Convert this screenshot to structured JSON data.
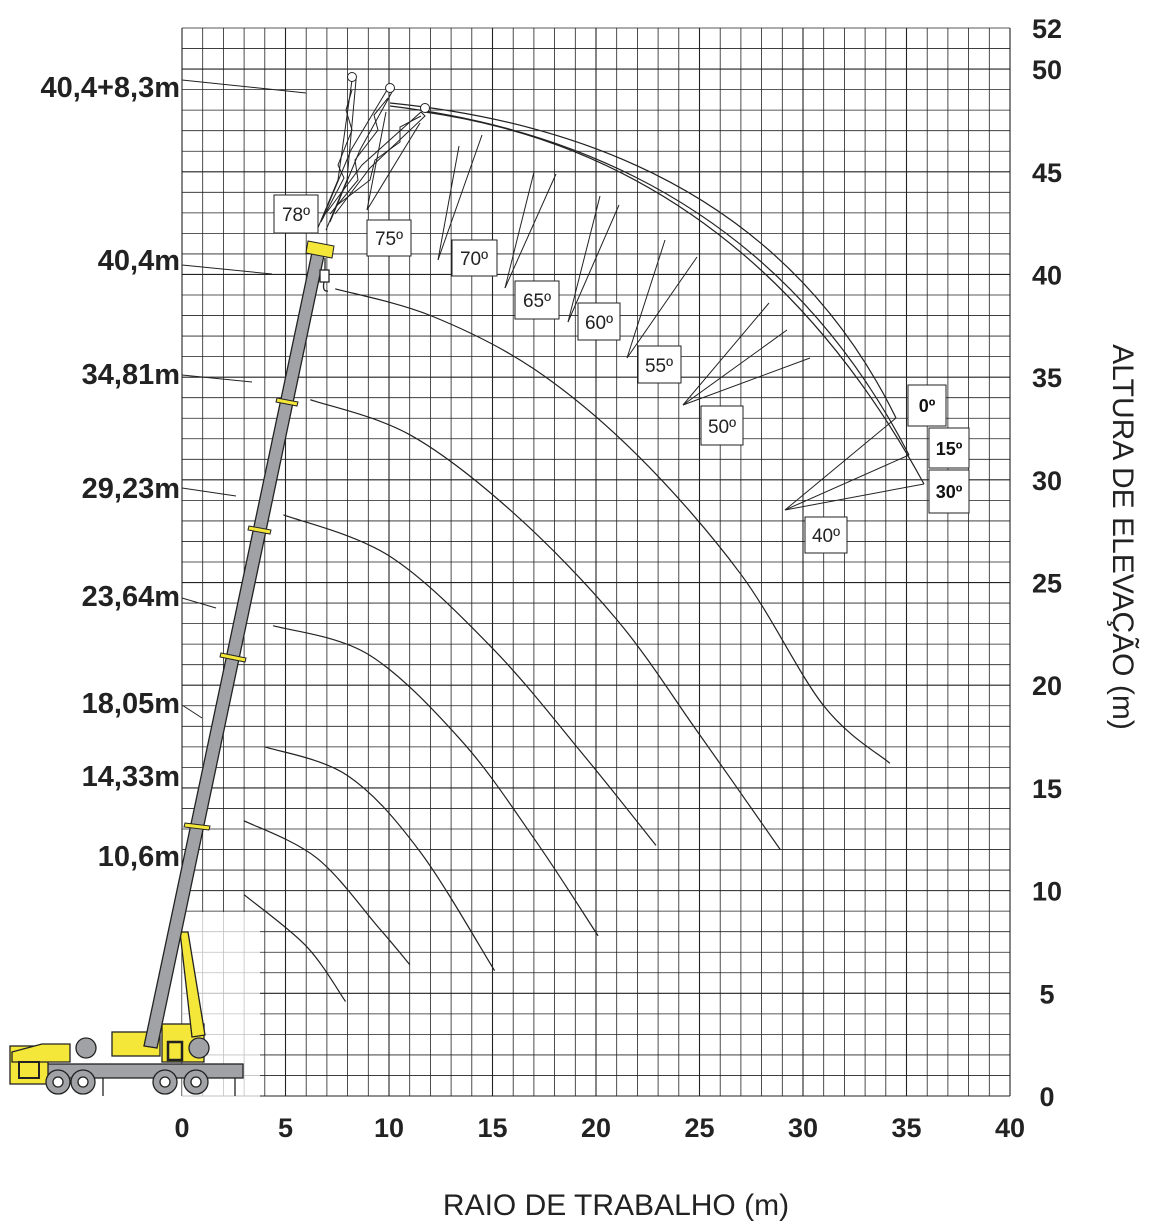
{
  "chart_data": {
    "type": "line",
    "xlabel": "RAIO DE TRABALHO (m)",
    "ylabel": "ALTURA DE ELEVAÇÃO (m)",
    "xlim": [
      0,
      40
    ],
    "ylim": [
      0,
      52
    ],
    "x_ticks": [
      "0",
      "5",
      "10",
      "15",
      "20",
      "25",
      "30",
      "35",
      "40"
    ],
    "y_ticks": [
      "0",
      "5",
      "10",
      "15",
      "20",
      "25",
      "30",
      "35",
      "40",
      "45",
      "50",
      "52"
    ],
    "grid": true,
    "boom_lengths": [
      {
        "label": "40,4+8,3m",
        "height": 48.7
      },
      {
        "label": "40,4m",
        "height": 39.7
      },
      {
        "label": "34,81m",
        "height": 34.6
      },
      {
        "label": "29,23m",
        "height": 29.1
      },
      {
        "label": "23,64m",
        "height": 23.7
      },
      {
        "label": "18,05m",
        "height": 18.5
      },
      {
        "label": "14,33m",
        "height": 14.8
      },
      {
        "label": "10,6m",
        "height": 11.2
      }
    ],
    "series": [
      {
        "x": [
          7.4,
          12,
          17,
          22,
          27,
          31,
          34.2
        ],
        "y": [
          39.3,
          38.0,
          35.4,
          31.2,
          25.4,
          19.0,
          16.2
        ]
      },
      {
        "x": [
          6.2,
          11,
          16,
          21,
          25,
          28.9
        ],
        "y": [
          33.9,
          32.2,
          28.4,
          23.2,
          17.6,
          12.0
        ]
      },
      {
        "x": [
          4.9,
          10,
          15,
          19.4,
          22.9
        ],
        "y": [
          28.3,
          26.3,
          21.8,
          16.6,
          12.2
        ]
      },
      {
        "x": [
          4.4,
          9,
          13.5,
          17.1,
          20.1
        ],
        "y": [
          22.9,
          21.5,
          17.3,
          12.4,
          7.8
        ]
      },
      {
        "x": [
          4.0,
          8,
          11.5,
          15.1
        ],
        "y": [
          17.0,
          15.6,
          11.9,
          6.1
        ]
      },
      {
        "x": [
          3.0,
          6.5,
          9.5,
          11.0
        ],
        "y": [
          13.4,
          11.6,
          8.2,
          6.4
        ]
      },
      {
        "x": [
          3.0,
          6,
          7.9
        ],
        "y": [
          9.8,
          7.3,
          4.6
        ]
      }
    ],
    "jib_angles": [
      "78º",
      "75º",
      "70º",
      "65º",
      "60º",
      "55º",
      "50º",
      "40º"
    ],
    "jib_offsets": [
      "0º",
      "15º",
      "30º"
    ]
  },
  "colors": {
    "boom": "#a0a2a5",
    "crane_yellow": "#f4e73a",
    "grid": "#222222",
    "text": "#222222"
  }
}
